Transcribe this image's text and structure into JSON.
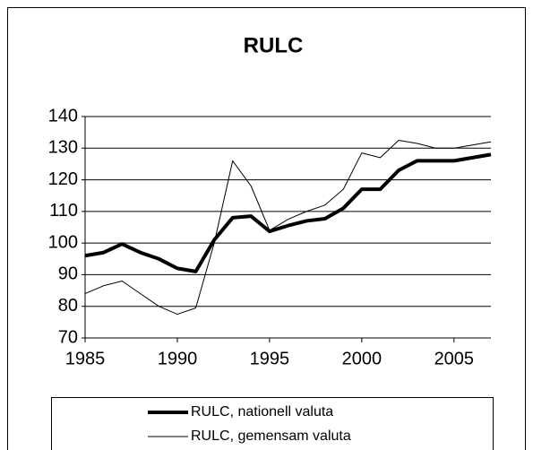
{
  "chart_data": {
    "type": "line",
    "title": "RULC",
    "x": [
      1985,
      1986,
      1987,
      1988,
      1989,
      1990,
      1991,
      1992,
      1993,
      1994,
      1995,
      1996,
      1997,
      1998,
      1999,
      2000,
      2001,
      2002,
      2003,
      2004,
      2005,
      2006,
      2007
    ],
    "series": [
      {
        "name": "RULC, nationell valuta",
        "color": "#000000",
        "width": 4,
        "values": [
          96,
          97,
          99.7,
          97,
          95,
          92,
          91,
          101,
          108,
          108.5,
          103.7,
          105.5,
          107,
          107.7,
          111,
          117,
          117,
          123,
          126,
          126,
          126,
          127,
          128
        ]
      },
      {
        "name": "RULC, gemensam valuta",
        "color": "#000000",
        "width": 1,
        "values": [
          84,
          86.5,
          88,
          84,
          80,
          77.5,
          79.5,
          100,
          126,
          118,
          104,
          107.5,
          110,
          112,
          117,
          128.5,
          127,
          132.5,
          131.5,
          130,
          130,
          131,
          132
        ]
      }
    ],
    "xlim": [
      1985,
      2007
    ],
    "xticks": [
      1985,
      1990,
      1995,
      2000,
      2005
    ],
    "ylim": [
      70,
      140
    ],
    "yticks": [
      70,
      80,
      90,
      100,
      110,
      120,
      130,
      140
    ],
    "grid": true
  }
}
